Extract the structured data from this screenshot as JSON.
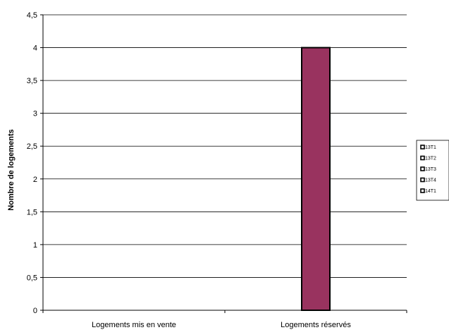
{
  "chart_data": {
    "type": "bar",
    "categories": [
      "Logements mis en vente",
      "Logements réservés"
    ],
    "series": [
      {
        "name": "13T1",
        "values": [
          0,
          0
        ],
        "color": "#99335f"
      },
      {
        "name": "13T2",
        "values": [
          0,
          0
        ],
        "color": "#99335f"
      },
      {
        "name": "13T3",
        "values": [
          0,
          0
        ],
        "color": "#99335f"
      },
      {
        "name": "13T4",
        "values": [
          0,
          0
        ],
        "color": "#99335f"
      },
      {
        "name": "14T1",
        "values": [
          0,
          4
        ],
        "color": "#99335f"
      }
    ],
    "title": "",
    "xlabel": "",
    "ylabel": "Nombre de logements",
    "ylim": [
      0,
      4.5
    ],
    "yticks": [
      "0",
      "0,5",
      "1",
      "1,5",
      "2",
      "2,5",
      "3",
      "3,5",
      "4",
      "4,5"
    ],
    "grid": true,
    "legend_position": "right"
  }
}
